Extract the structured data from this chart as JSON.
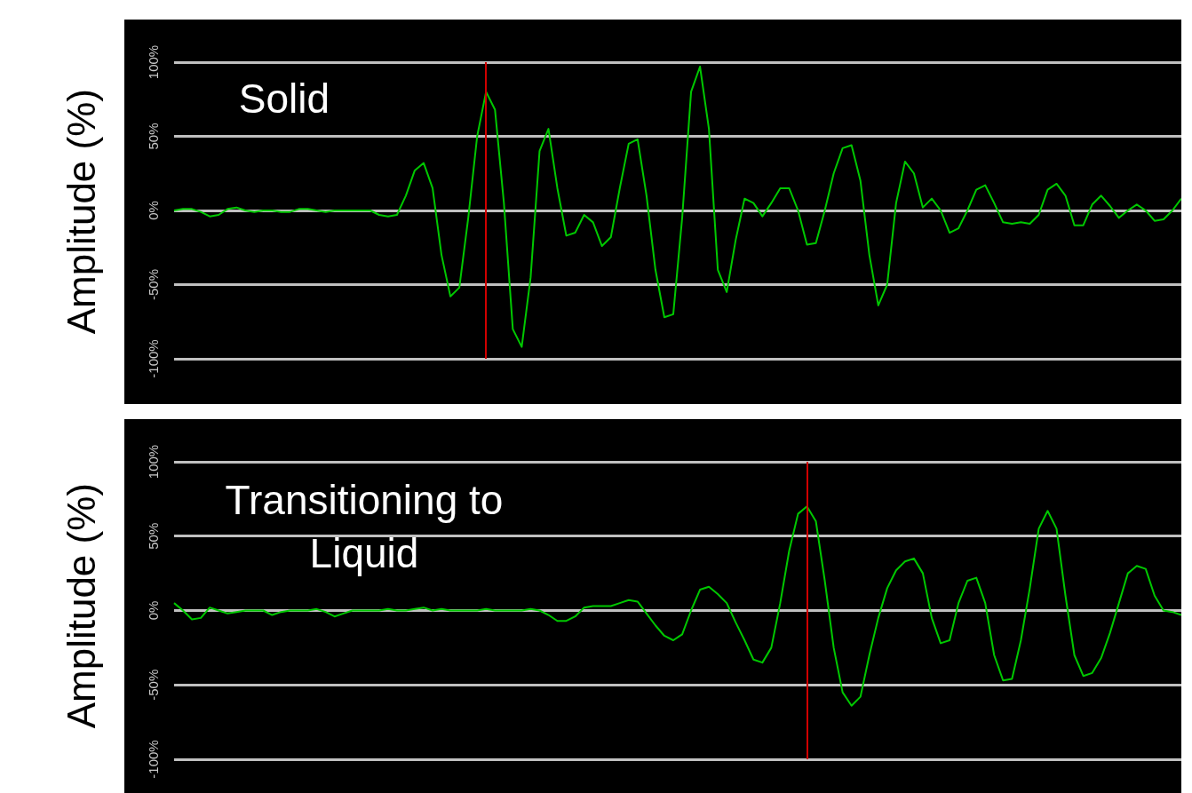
{
  "chart_data": [
    {
      "type": "line",
      "ylabel": "Amplitude (%)",
      "annotations": [
        "Solid"
      ],
      "categories": [
        null,
        null,
        null,
        null,
        null,
        null,
        null,
        null,
        null,
        null,
        null,
        null,
        null,
        null,
        null,
        null,
        null,
        null,
        null,
        null,
        null,
        null,
        null,
        null,
        null,
        null,
        null,
        null,
        null,
        null,
        null,
        null,
        null,
        null,
        null,
        null,
        null,
        null,
        null,
        null,
        null,
        null,
        null,
        null,
        null,
        null,
        null,
        null,
        null,
        null,
        null,
        null,
        null,
        null,
        null,
        null,
        null,
        null,
        null,
        null,
        null,
        null,
        null,
        null,
        null,
        null,
        null,
        null,
        null,
        null,
        null,
        null,
        null,
        null,
        null,
        null,
        null,
        null,
        null,
        null,
        null,
        null,
        null,
        null,
        null,
        null,
        null,
        null,
        null,
        null,
        null,
        null,
        null,
        null,
        null,
        null,
        null,
        null,
        null,
        null,
        null,
        null,
        null,
        null,
        null,
        null,
        null,
        null,
        null,
        null,
        null,
        null,
        null,
        null
      ],
      "series": [
        {
          "color": "#00c800",
          "values": [
            0,
            1,
            1,
            -1,
            -4,
            -3,
            1,
            2,
            0,
            -1,
            0,
            0,
            -1,
            -1,
            1,
            1,
            0,
            -1,
            0,
            0,
            0,
            0,
            0,
            -3,
            -4,
            -3,
            10,
            27,
            32,
            15,
            -30,
            -58,
            -52,
            -5,
            50,
            80,
            68,
            5,
            -80,
            -92,
            -45,
            40,
            55,
            15,
            -17,
            -15,
            -3,
            -8,
            -24,
            -18,
            15,
            45,
            48,
            10,
            -40,
            -72,
            -70,
            -5,
            80,
            97,
            55,
            -40,
            -55,
            -20,
            8,
            5,
            -4,
            5,
            15,
            15,
            0,
            -23,
            -22,
            0,
            25,
            42,
            44,
            20,
            -30,
            -64,
            -50,
            5,
            33,
            25,
            2,
            8,
            0,
            -15,
            -12,
            0,
            14,
            17,
            5,
            -8,
            -9,
            -8,
            -9,
            -3,
            14,
            18,
            10,
            -10,
            -10,
            4,
            10,
            3,
            -5,
            0,
            4,
            0,
            -7,
            -6,
            0,
            8
          ]
        }
      ],
      "ylim": [
        -100,
        100
      ],
      "yticks": [
        {
          "value": -100,
          "label": "-100%"
        },
        {
          "value": -50,
          "label": "-50%"
        },
        {
          "value": 0,
          "label": "0%"
        },
        {
          "value": 50,
          "label": "50%"
        },
        {
          "value": 100,
          "label": "100%"
        }
      ],
      "grid": "y",
      "legend": false,
      "marker": "none",
      "line_style": "solid",
      "tick_labels": "y"
    },
    {
      "type": "line",
      "ylabel": "Amplitude (%)",
      "annotations": [
        "Transitioning to Liquid"
      ],
      "categories": [
        null,
        null,
        null,
        null,
        null,
        null,
        null,
        null,
        null,
        null,
        null,
        null,
        null,
        null,
        null,
        null,
        null,
        null,
        null,
        null,
        null,
        null,
        null,
        null,
        null,
        null,
        null,
        null,
        null,
        null,
        null,
        null,
        null,
        null,
        null,
        null,
        null,
        null,
        null,
        null,
        null,
        null,
        null,
        null,
        null,
        null,
        null,
        null,
        null,
        null,
        null,
        null,
        null,
        null,
        null,
        null,
        null,
        null,
        null,
        null,
        null,
        null,
        null,
        null,
        null,
        null,
        null,
        null,
        null,
        null,
        null,
        null,
        null,
        null,
        null,
        null,
        null,
        null,
        null,
        null,
        null,
        null,
        null,
        null,
        null,
        null,
        null,
        null,
        null,
        null,
        null,
        null,
        null,
        null,
        null,
        null,
        null,
        null,
        null,
        null,
        null,
        null,
        null,
        null,
        null,
        null,
        null,
        null,
        null,
        null,
        null,
        null,
        null,
        null
      ],
      "series": [
        {
          "color": "#00c800",
          "values": [
            5,
            0,
            -6,
            -5,
            2,
            0,
            -2,
            -1,
            0,
            0,
            0,
            -3,
            -1,
            0,
            0,
            0,
            1,
            -1,
            -4,
            -2,
            0,
            0,
            0,
            0,
            1,
            0,
            0,
            1,
            2,
            0,
            1,
            0,
            0,
            0,
            0,
            1,
            0,
            0,
            0,
            0,
            1,
            0,
            -3,
            -7,
            -7,
            -4,
            2,
            3,
            3,
            3,
            5,
            7,
            6,
            -2,
            -10,
            -17,
            -20,
            -16,
            0,
            14,
            16,
            11,
            5,
            -8,
            -20,
            -33,
            -35,
            -25,
            5,
            40,
            65,
            70,
            60,
            20,
            -25,
            -55,
            -64,
            -58,
            -30,
            -5,
            15,
            27,
            33,
            35,
            25,
            -5,
            -22,
            -20,
            5,
            20,
            22,
            5,
            -30,
            -47,
            -46,
            -20,
            15,
            55,
            67,
            55,
            10,
            -30,
            -44,
            -42,
            -32,
            -15,
            5,
            25,
            30,
            28,
            10,
            0,
            -1,
            -3
          ]
        }
      ],
      "ylim": [
        -100,
        100
      ],
      "yticks": [
        {
          "value": -100,
          "label": "-100%"
        },
        {
          "value": -50,
          "label": "-50%"
        },
        {
          "value": 0,
          "label": "0%"
        },
        {
          "value": 50,
          "label": "50%"
        },
        {
          "value": 100,
          "label": "100%"
        }
      ],
      "grid": "y",
      "legend": false,
      "marker": "none",
      "line_style": "solid",
      "tick_labels": "y"
    }
  ]
}
